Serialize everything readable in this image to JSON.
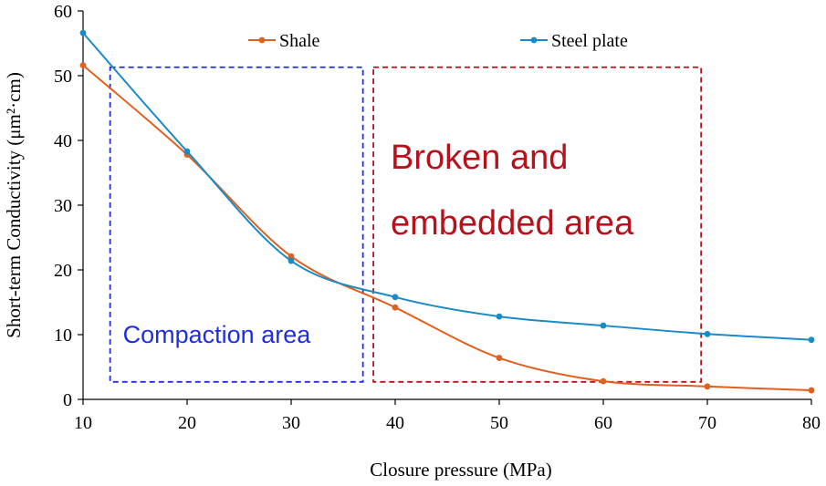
{
  "chart_data": {
    "type": "line",
    "title": "",
    "xlabel": "Closure pressure (MPa)",
    "ylabel": "Short-term Conductivity (μm²·cm)",
    "xlim": [
      10,
      80
    ],
    "ylim": [
      0,
      60
    ],
    "x_ticks": [
      10,
      20,
      30,
      40,
      50,
      60,
      70,
      80
    ],
    "y_ticks": [
      0,
      10,
      20,
      30,
      40,
      50,
      60
    ],
    "grid": false,
    "legend_position": "top",
    "series": [
      {
        "name": "Shale",
        "color": "#E2601E",
        "x": [
          10,
          20,
          30,
          40,
          50,
          60,
          70,
          80
        ],
        "values": [
          51.6,
          37.8,
          22.1,
          14.2,
          6.4,
          2.8,
          2.0,
          1.4
        ]
      },
      {
        "name": "Steel plate",
        "color": "#1A8BC6",
        "x": [
          10,
          20,
          30,
          40,
          50,
          60,
          70,
          80
        ],
        "values": [
          56.6,
          38.3,
          21.4,
          15.8,
          12.8,
          11.4,
          10.1,
          9.2
        ]
      }
    ],
    "regions": [
      {
        "label": "Compaction area",
        "color": "#1F2FE0",
        "x_range": [
          12.6,
          36.9
        ],
        "y_range": [
          2.7,
          51.3
        ]
      },
      {
        "label_lines": [
          "Broken and",
          "embedded area"
        ],
        "color": "#B5121B",
        "x_range": [
          37.9,
          69.4
        ],
        "y_range": [
          2.7,
          51.3
        ]
      }
    ]
  }
}
